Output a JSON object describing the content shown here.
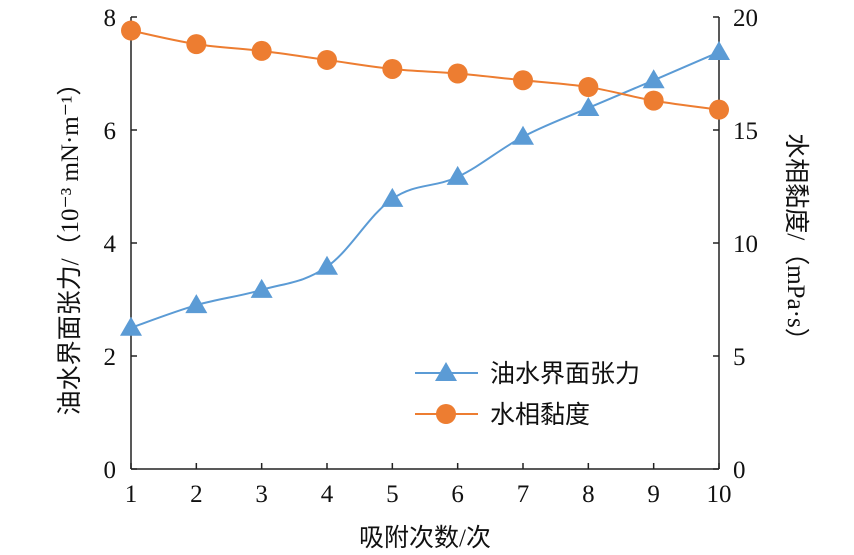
{
  "chart_data": {
    "type": "line",
    "xlabel": "吸附次数/次",
    "ylabel": "油水界面张力/（10⁻³ mN·m⁻¹）",
    "y2label": "水相黏度/（mPa·s）",
    "x": [
      1,
      2,
      3,
      4,
      5,
      6,
      7,
      8,
      9,
      10
    ],
    "xlim": [
      1,
      10
    ],
    "ylim": [
      0,
      8
    ],
    "y2lim": [
      0,
      20
    ],
    "xticks": [
      "1",
      "2",
      "3",
      "4",
      "5",
      "6",
      "7",
      "8",
      "9",
      "10"
    ],
    "yticks": [
      "0",
      "2",
      "4",
      "6",
      "8"
    ],
    "y2ticks": [
      "0",
      "5",
      "10",
      "15",
      "20"
    ],
    "grid": false,
    "legend_position": "bottom-right",
    "series": [
      {
        "name": "油水界面张力",
        "axis": "left",
        "marker": "triangle",
        "color": "#5B9BD5",
        "values": [
          2.5,
          2.9,
          3.17,
          3.58,
          4.78,
          5.17,
          5.88,
          6.39,
          6.88,
          7.38
        ]
      },
      {
        "name": "水相黏度",
        "axis": "right",
        "marker": "circle",
        "color": "#ED7D31",
        "values": [
          19.4,
          18.8,
          18.5,
          18.1,
          17.7,
          17.5,
          17.2,
          16.9,
          16.3,
          15.9
        ]
      }
    ]
  }
}
